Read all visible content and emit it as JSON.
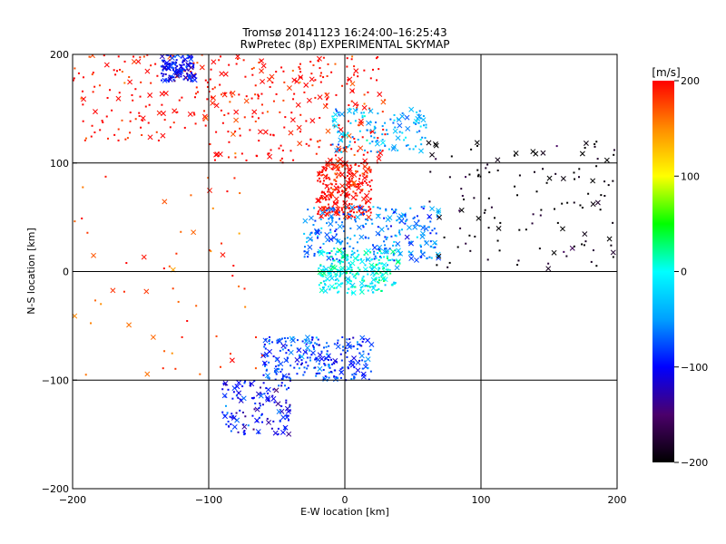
{
  "chart_data": [
    {
      "type": "scatter",
      "title": "Tromsø 20141123 16:24:00–16:25:43",
      "subtitle": "RwPretec (8p) EXPERIMENTAL SKYMAP",
      "xlabel": "E-W location [km]",
      "ylabel": "N-S location [km]",
      "xlim": [
        -200,
        200
      ],
      "ylim": [
        -200,
        200
      ],
      "xticks": [
        -200,
        -100,
        0,
        100,
        200
      ],
      "yticks": [
        -200,
        -100,
        0,
        100,
        200
      ],
      "grid": true,
      "marker_styles": [
        "dot",
        "x"
      ],
      "colorbar": {
        "label": "[m/s]",
        "min": -200,
        "max": 200,
        "ticks": [
          200,
          100,
          0,
          -100,
          -200
        ],
        "colormap": "rainbow",
        "colors": [
          "#000000",
          "#4b006b",
          "#0000ff",
          "#00a0ff",
          "#00ffff",
          "#00ff00",
          "#ffff00",
          "#ff8c00",
          "#ff0000"
        ]
      },
      "clusters": [
        {
          "region": "north-center",
          "x": [
            -100,
            30
          ],
          "y": [
            100,
            200
          ],
          "mean_velocity": 200,
          "density": "high"
        },
        {
          "region": "northwest-arc",
          "x": [
            -200,
            -100
          ],
          "y": [
            120,
            200
          ],
          "mean_velocity": 200,
          "density": "medium"
        },
        {
          "region": "northwest-corner",
          "x": [
            -135,
            -110
          ],
          "y": [
            175,
            200
          ],
          "mean_velocity": -100,
          "density": "medium"
        },
        {
          "region": "north-center-band",
          "x": [
            -10,
            60
          ],
          "y": [
            110,
            150
          ],
          "mean_velocity": -40,
          "density": "medium"
        },
        {
          "region": "center-hotspot",
          "x": [
            -20,
            20
          ],
          "y": [
            50,
            100
          ],
          "mean_velocity": 200,
          "density": "high"
        },
        {
          "region": "center-band",
          "x": [
            -30,
            70
          ],
          "y": [
            10,
            60
          ],
          "mean_velocity": -60,
          "density": "high"
        },
        {
          "region": "center-origin",
          "x": [
            -20,
            40
          ],
          "y": [
            -20,
            20
          ],
          "mean_velocity": 0,
          "density": "high"
        },
        {
          "region": "east",
          "x": [
            60,
            200
          ],
          "y": [
            0,
            120
          ],
          "mean_velocity": -200,
          "density": "medium"
        },
        {
          "region": "south-center",
          "x": [
            -60,
            20
          ],
          "y": [
            -100,
            -60
          ],
          "mean_velocity": -80,
          "density": "high"
        },
        {
          "region": "southwest",
          "x": [
            -90,
            -40
          ],
          "y": [
            -150,
            -100
          ],
          "mean_velocity": -100,
          "density": "medium"
        },
        {
          "region": "west-scatter",
          "x": [
            -200,
            -60
          ],
          "y": [
            -100,
            100
          ],
          "mean_velocity": 180,
          "density": "low"
        }
      ]
    }
  ]
}
